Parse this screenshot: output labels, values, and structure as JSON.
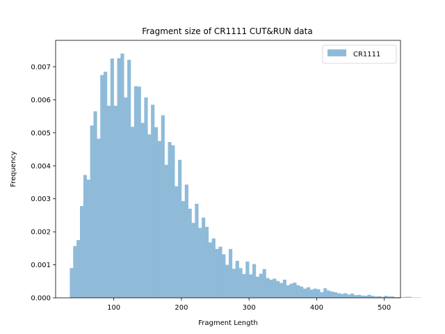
{
  "chart_data": {
    "type": "bar",
    "title": "Fragment size of CR1111 CUT&RUN data",
    "xlabel": "Fragment Length",
    "ylabel": "Frequency",
    "xlim": [
      14,
      524
    ],
    "ylim": [
      0,
      0.0078
    ],
    "xticks": [
      100,
      200,
      300,
      400,
      500
    ],
    "yticks": [
      "0.000",
      "0.001",
      "0.002",
      "0.003",
      "0.004",
      "0.005",
      "0.006",
      "0.007"
    ],
    "grid": false,
    "legend": {
      "position": "top-right"
    },
    "color": "#8fbbd9",
    "series": [
      {
        "name": "CR1111",
        "bin_start": 35,
        "bin_width": 5,
        "values": [
          0.0009,
          0.00157,
          0.00175,
          0.00278,
          0.00372,
          0.00358,
          0.00522,
          0.00565,
          0.00482,
          0.00675,
          0.00685,
          0.00582,
          0.00725,
          0.00582,
          0.00726,
          0.0074,
          0.00607,
          0.00721,
          0.00518,
          0.00641,
          0.0064,
          0.0053,
          0.00607,
          0.00495,
          0.00585,
          0.00517,
          0.00475,
          0.00553,
          0.00403,
          0.00472,
          0.00462,
          0.00338,
          0.00418,
          0.00293,
          0.00343,
          0.0027,
          0.00227,
          0.00285,
          0.00212,
          0.00243,
          0.00215,
          0.00168,
          0.0018,
          0.00148,
          0.00155,
          0.00132,
          0.001,
          0.00148,
          0.00088,
          0.00112,
          0.0009,
          0.00072,
          0.0011,
          0.00071,
          0.00102,
          0.00064,
          0.00073,
          0.00087,
          0.0006,
          0.00055,
          0.00058,
          0.00051,
          0.00045,
          0.00055,
          0.00038,
          0.00043,
          0.00046,
          0.00038,
          0.00034,
          0.00028,
          0.00032,
          0.00025,
          0.00028,
          0.00026,
          0.00017,
          0.00029,
          0.00022,
          0.00019,
          0.00017,
          0.00014,
          0.00012,
          0.00014,
          0.0001,
          0.00013,
          8e-05,
          9e-05,
          7e-05,
          6e-05,
          9e-05,
          6e-05,
          4e-05,
          5e-05,
          3e-05,
          6e-05,
          4e-05,
          4e-05,
          2e-05,
          2e-05,
          2e-05,
          3e-05,
          3e-05,
          1e-05,
          1e-05,
          1e-05
        ]
      }
    ]
  }
}
